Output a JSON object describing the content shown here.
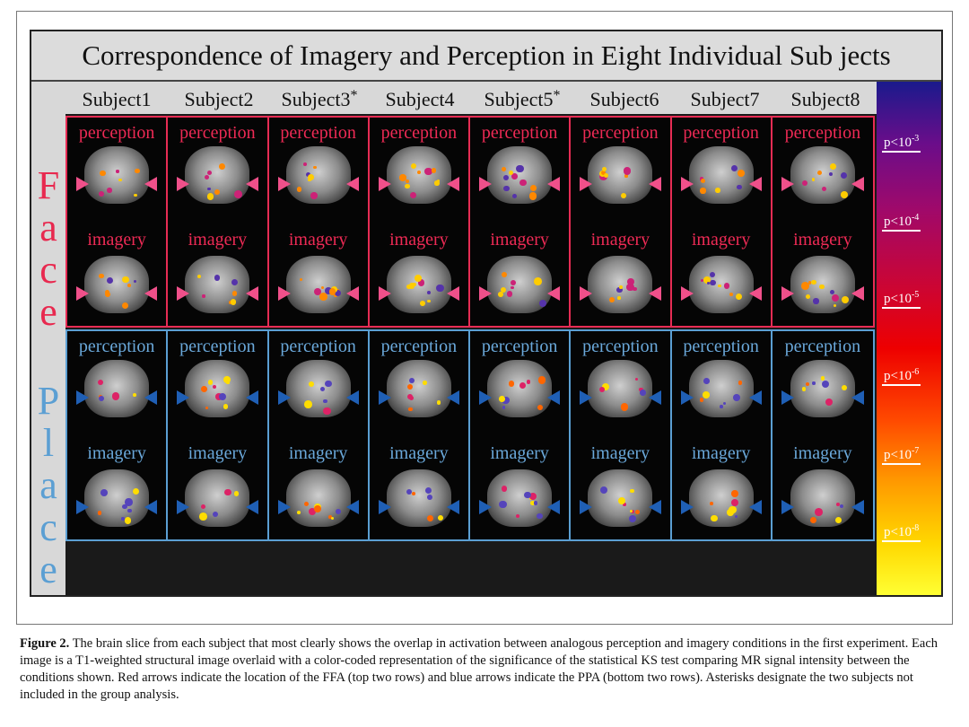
{
  "title": "Correspondence of Imagery and Perception in Eight Individual Sub jects",
  "subjects": [
    {
      "label": "Subject1",
      "star": ""
    },
    {
      "label": "Subject2",
      "star": ""
    },
    {
      "label": "Subject3",
      "star": "*"
    },
    {
      "label": "Subject4",
      "star": ""
    },
    {
      "label": "Subject5",
      "star": "*"
    },
    {
      "label": "Subject6",
      "star": ""
    },
    {
      "label": "Subject7",
      "star": ""
    },
    {
      "label": "Subject8",
      "star": ""
    }
  ],
  "face_letters": [
    "F",
    "a",
    "c",
    "e"
  ],
  "place_letters": [
    "P",
    "l",
    "a",
    "c",
    "e"
  ],
  "cond_perception": "perception",
  "cond_imagery": "imagery",
  "colorbar": [
    {
      "base": "p<10",
      "exp": "-3"
    },
    {
      "base": "p<10",
      "exp": "-4"
    },
    {
      "base": "p<10",
      "exp": "-5"
    },
    {
      "base": "p<10",
      "exp": "-6"
    },
    {
      "base": "p<10",
      "exp": "-7"
    },
    {
      "base": "p<10",
      "exp": "-8"
    }
  ],
  "caption": {
    "label": "Figure 2.",
    "text": "The brain slice from each subject that most clearly shows the overlap in activation between analogous perception and imagery conditions in the first experiment. Each image is a T1-weighted structural image overlaid with a color-coded representation of the significance of the statistical KS test comparing MR signal intensity between the conditions shown. Red arrows indicate the location of the FFA (top two rows) and blue arrows indicate the PPA (bottom two rows). Asterisks designate the two subjects not included in the group analysis."
  },
  "colors": {
    "face": "#e62c54",
    "place": "#5b9fd3",
    "face_arrow": "#f0508a",
    "place_arrow": "#1f5fb5"
  }
}
